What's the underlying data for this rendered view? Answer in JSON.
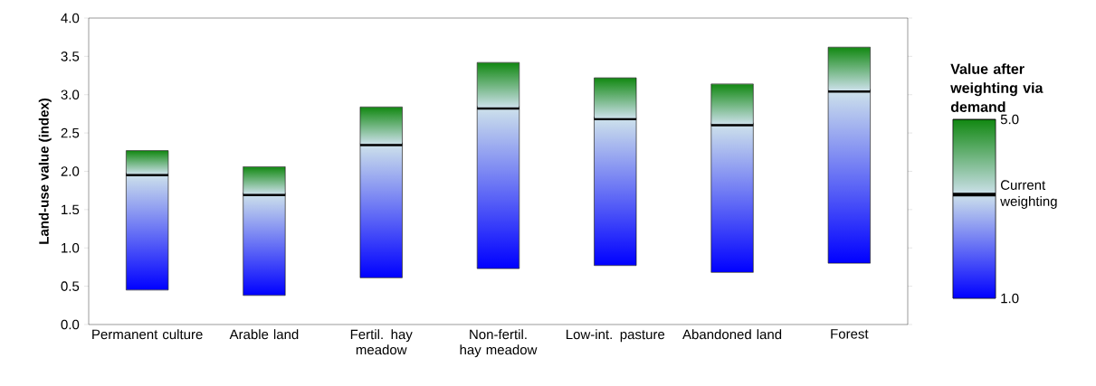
{
  "chart_data": {
    "type": "bar",
    "ylabel": "Land-use value (index)",
    "stacked": true,
    "categories": [
      "Permanent culture",
      "Arable land",
      "Fertil. hay meadow",
      "Non-fertil. hay meadow",
      "Low-int. pasture",
      "Abandoned land",
      "Forest"
    ],
    "series": [
      {
        "color": "#0000ff",
        "base": [
          0.45,
          0.38,
          0.61,
          0.73,
          0.77,
          0.68,
          0.8
        ],
        "values": [
          1.51,
          1.32,
          1.74,
          2.1,
          1.92,
          1.93,
          2.25
        ]
      },
      {
        "color": "#118811",
        "values": [
          0.31,
          0.36,
          0.49,
          0.59,
          0.53,
          0.53,
          0.57
        ]
      }
    ],
    "ylim": [
      0,
      4
    ],
    "yticks": [
      {
        "value": 0,
        "label": "0.0"
      },
      {
        "value": 0.5,
        "label": "0.5"
      },
      {
        "value": 1,
        "label": "1.0"
      },
      {
        "value": 1.5,
        "label": "1.5"
      },
      {
        "value": 2,
        "label": "2.0"
      },
      {
        "value": 2.5,
        "label": "2.5"
      },
      {
        "value": 3,
        "label": "3.0"
      },
      {
        "value": 3.5,
        "label": "3.5"
      },
      {
        "value": 4,
        "label": "4.0"
      }
    ],
    "clabel": "Value after weighting via demand",
    "clim": [
      1,
      5
    ],
    "cticks": [
      {
        "value": 1,
        "label": "1.0"
      },
      {
        "value": 5,
        "label": "5.0"
      }
    ],
    "annotations": [
      "Current weighting"
    ]
  }
}
